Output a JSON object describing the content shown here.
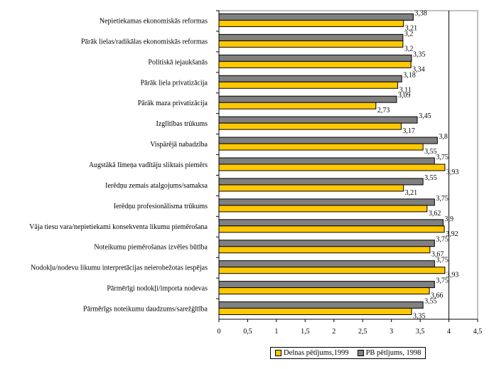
{
  "chart_data": {
    "type": "bar",
    "orientation": "horizontal",
    "categories": [
      "Nepietiekamas ekonomiskās reformas",
      "Pārāk lielas/radikālas ekonomiskās reformas",
      "Politiskā iejaukšanās",
      "Pārāk liela privatizācija",
      "Pārāk maza privatizācija",
      "Izglītības trūkums",
      "Vispārējā nabadzība",
      "Augstākā līmeņa vadītāju sliktais piemērs",
      "Ierēdņu zemais atalgojums/samaksa",
      "Ierēdņu profesionālisma trūkums",
      "Vāja tiesu vara/nepietiekami konsekventa likumu piemērošana",
      "Noteikumu piemērošanas izvēles būtība",
      "Nodokļu/nodevu likumu interpretācijas neierobežotas iespējas",
      "Pārmērīgi nodokļi/importa nodevas",
      "Pārmērīgs noteikumu daudzums/sarežģītība"
    ],
    "series": [
      {
        "name": "PB pētījums, 1998",
        "color": "#808080",
        "values": [
          3.38,
          3.2,
          3.35,
          3.18,
          3.09,
          3.45,
          3.8,
          3.75,
          3.55,
          3.75,
          3.9,
          3.75,
          3.75,
          3.75,
          3.55
        ],
        "labels": [
          "3,38",
          "3,2",
          "3,35",
          "3,18",
          "3,09",
          "3,45",
          "3,8",
          "3,75",
          "3,55",
          "3,75",
          "3,9",
          "3,75",
          "3,75",
          "3,75",
          "3,55"
        ]
      },
      {
        "name": "Delnas pētījums,1999",
        "color": "#FFC800",
        "values": [
          3.21,
          3.2,
          3.34,
          3.11,
          2.73,
          3.17,
          3.55,
          3.93,
          3.21,
          3.62,
          3.92,
          3.67,
          3.93,
          3.66,
          3.35
        ],
        "labels": [
          "3,21",
          "3,2",
          "3,34",
          "3,11",
          "2,73",
          "3,17",
          "3,55",
          "3,93",
          "3,21",
          "3,62",
          "3,92",
          "3,67",
          "3,93",
          "3,66",
          "3,35"
        ]
      }
    ],
    "xlim": [
      0,
      4.5
    ],
    "xticks": [
      "0",
      "0,5",
      "1",
      "1,5",
      "2",
      "2,5",
      "3",
      "3,5",
      "4",
      "4,5"
    ],
    "reference_line": 4,
    "grid": false,
    "legend_position": "bottom",
    "legend": [
      "Delnas pētījums,1999",
      "PB pētījums, 1998"
    ]
  }
}
